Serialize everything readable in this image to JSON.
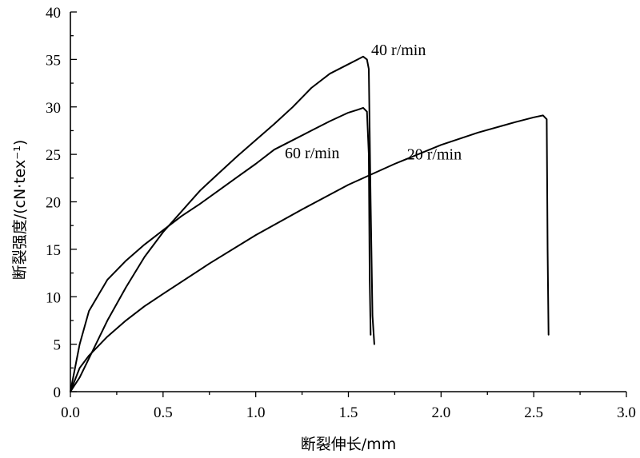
{
  "chart_data": {
    "type": "line",
    "title": "",
    "xlabel": "断裂伸长/mm",
    "ylabel": "断裂强度/(cN·tex⁻¹)",
    "xlim": [
      0,
      3.0
    ],
    "ylim": [
      0,
      40
    ],
    "x_ticks": [
      "0.0",
      "0.5",
      "1.0",
      "1.5",
      "2.0",
      "2.5",
      "3.0"
    ],
    "y_ticks": [
      "0",
      "5",
      "10",
      "15",
      "20",
      "25",
      "30",
      "35",
      "40"
    ],
    "grid": false,
    "legend": "none",
    "series": [
      {
        "name": "40 r/min",
        "x": [
          0.0,
          0.05,
          0.1,
          0.2,
          0.3,
          0.4,
          0.5,
          0.6,
          0.7,
          0.8,
          0.9,
          1.0,
          1.1,
          1.2,
          1.3,
          1.4,
          1.5,
          1.55,
          1.58,
          1.6,
          1.61,
          1.62,
          1.63,
          1.64
        ],
        "y": [
          0.0,
          1.5,
          3.5,
          7.5,
          11.0,
          14.2,
          16.8,
          19.0,
          21.2,
          23.0,
          24.8,
          26.5,
          28.2,
          30.0,
          32.0,
          33.5,
          34.5,
          35.0,
          35.3,
          35.0,
          34.0,
          20.0,
          8.0,
          5.0
        ]
      },
      {
        "name": "60 r/min",
        "x": [
          0.0,
          0.05,
          0.1,
          0.2,
          0.3,
          0.4,
          0.5,
          0.6,
          0.7,
          0.8,
          0.9,
          1.0,
          1.1,
          1.2,
          1.3,
          1.4,
          1.5,
          1.55,
          1.58,
          1.6,
          1.61,
          1.615,
          1.62
        ],
        "y": [
          0.0,
          5.0,
          8.5,
          11.8,
          13.8,
          15.5,
          17.0,
          18.5,
          19.8,
          21.2,
          22.6,
          24.0,
          25.5,
          26.5,
          27.5,
          28.5,
          29.4,
          29.7,
          29.9,
          29.5,
          25.0,
          12.0,
          6.0
        ]
      },
      {
        "name": "20 r/min",
        "x": [
          0.0,
          0.05,
          0.1,
          0.2,
          0.3,
          0.4,
          0.5,
          0.75,
          1.0,
          1.25,
          1.5,
          1.75,
          2.0,
          2.2,
          2.4,
          2.5,
          2.55,
          2.57,
          2.575,
          2.58
        ],
        "y": [
          0.0,
          2.5,
          3.8,
          5.8,
          7.5,
          9.0,
          10.3,
          13.5,
          16.5,
          19.2,
          21.8,
          24.0,
          26.0,
          27.3,
          28.4,
          28.9,
          29.1,
          28.7,
          15.0,
          6.0
        ]
      }
    ],
    "annotations": [
      {
        "text": "40 r/min",
        "series": "40 r/min"
      },
      {
        "text": "60 r/min",
        "series": "60 r/min"
      },
      {
        "text": "20 r/min",
        "series": "20 r/min"
      }
    ]
  }
}
